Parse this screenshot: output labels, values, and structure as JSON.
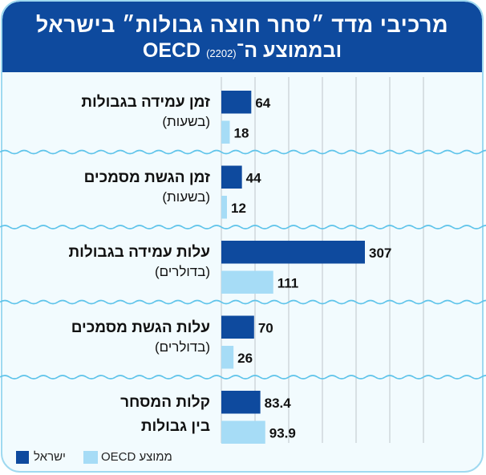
{
  "header": {
    "title_line1": "מרכיבי מדד ״סחר חוצה גבולות״ בישראל",
    "title_line2": "ובממוצע ה־OECD",
    "year": "(2202)"
  },
  "colors": {
    "israel": "#0e4a9e",
    "oecd": "#a6dcf6",
    "header": "#0e4a9e"
  },
  "chart_data": {
    "type": "bar",
    "orientation": "horizontal",
    "categories": [
      {
        "label": "זמן עמידה בגבולות",
        "unit": "(בשעות)"
      },
      {
        "label": "זמן הגשת מסמכים",
        "unit": "(בשעות)"
      },
      {
        "label": "עלות עמידה בגבולות",
        "unit": "(בדולרים)"
      },
      {
        "label": "עלות הגשת מסמכים",
        "unit": "(בדולרים)"
      },
      {
        "label": "קלות המסחר",
        "unit": "בין גבולות"
      }
    ],
    "series": [
      {
        "name": "ישראל",
        "values": [
          64,
          44,
          307,
          70,
          83.4
        ],
        "labels": [
          "64",
          "44",
          "307",
          "70",
          "83.4"
        ]
      },
      {
        "name": "ממוצע OECD",
        "values": [
          18,
          12,
          111,
          26,
          93.9
        ],
        "labels": [
          "18",
          "12",
          "111",
          "26",
          "93.9"
        ]
      }
    ],
    "xlim": [
      0,
      540
    ],
    "grid": true,
    "legend_position": "bottom-left"
  },
  "legend": {
    "israel": "ישראל",
    "oecd": "ממוצע OECD"
  }
}
